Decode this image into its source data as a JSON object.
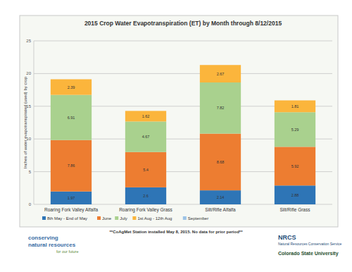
{
  "chart_data": {
    "type": "bar",
    "stacked": true,
    "title": "2015 Crop Water Evapotranspiration (ET) by Month through 8/12/2015",
    "y_label": "Inches of water evapotranspirated (used) by crop",
    "categories": [
      "Roaring Fork Valley Alfalfa",
      "Roaring Fork Valley Grass",
      "Silt/Rifle Alfalfa",
      "Silt/Rifle Grass"
    ],
    "series": [
      {
        "name": "8th May - End of May",
        "color": "#2e75b6",
        "values": [
          1.97,
          2.6,
          2.14,
          2.88
        ]
      },
      {
        "name": "June",
        "color": "#ed7d31",
        "values": [
          7.86,
          5.4,
          8.68,
          5.92
        ]
      },
      {
        "name": "July",
        "color": "#a9d18e",
        "values": [
          6.91,
          4.67,
          7.82,
          5.29
        ]
      },
      {
        "name": "1st Aug - 12th Aug",
        "color": "#fbb53c",
        "values": [
          2.39,
          1.62,
          2.67,
          1.81
        ]
      },
      {
        "name": "September",
        "color": "#9dc3e6",
        "values": [
          null,
          null,
          null,
          null
        ]
      }
    ],
    "ylim": [
      0,
      25
    ],
    "yticks": [
      0,
      5,
      10,
      15,
      20,
      25
    ],
    "grid": true,
    "legend": "bottom",
    "data_labels": true,
    "annotations": [
      "**CoAgMet Station installed May 8, 2015.  No data for prior period**",
      "conserving",
      "natural resources",
      "for our future",
      "NRCS",
      "Natural Resources Conservation Service",
      "Colorado State University"
    ]
  }
}
